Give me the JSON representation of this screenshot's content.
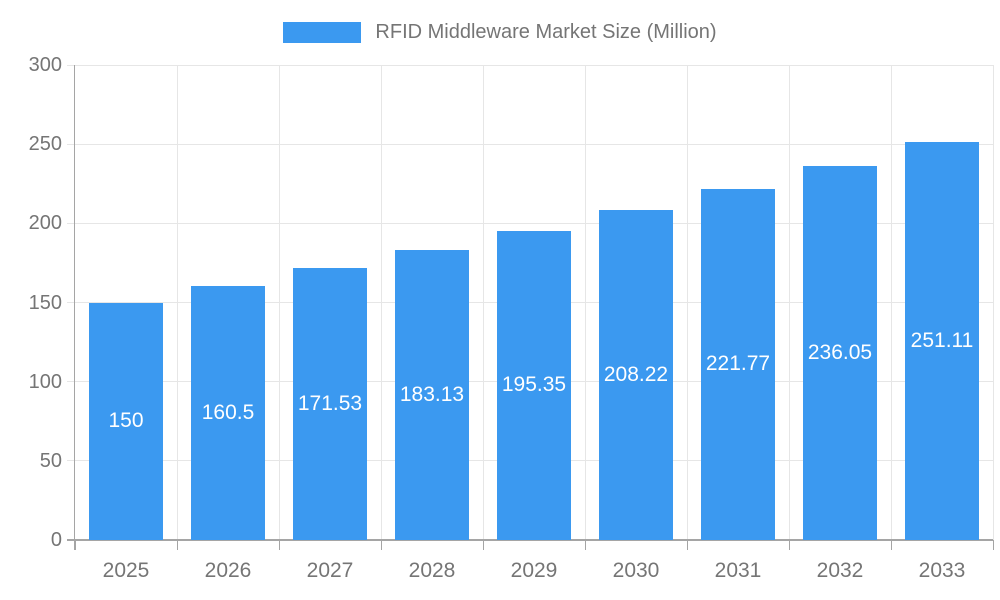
{
  "chart": {
    "legend": {
      "label": "RFID Middleware Market Size (Million)"
    },
    "colors": {
      "bar": "#3B99F0",
      "gridline": "#e6e6e6",
      "axis_line": "#a5a5a5",
      "label_text": "#757575",
      "value_label_text": "#ffffff",
      "background": "#ffffff"
    }
  },
  "chart_data": {
    "type": "bar",
    "categories": [
      "2025",
      "2026",
      "2027",
      "2028",
      "2029",
      "2030",
      "2031",
      "2032",
      "2033"
    ],
    "values": [
      150,
      160.5,
      171.53,
      183.13,
      195.35,
      208.22,
      221.77,
      236.05,
      251.11
    ],
    "series_name": "RFID Middleware Market Size (Million)",
    "legend_entries": [
      "RFID Middleware Market Size (Million)"
    ],
    "xlabel": "",
    "ylabel": "",
    "ylim": [
      0,
      300
    ],
    "yticks": [
      0,
      50,
      100,
      150,
      200,
      250,
      300
    ],
    "grid": true,
    "legend_position": "top",
    "value_label_position": "inside-middle"
  }
}
